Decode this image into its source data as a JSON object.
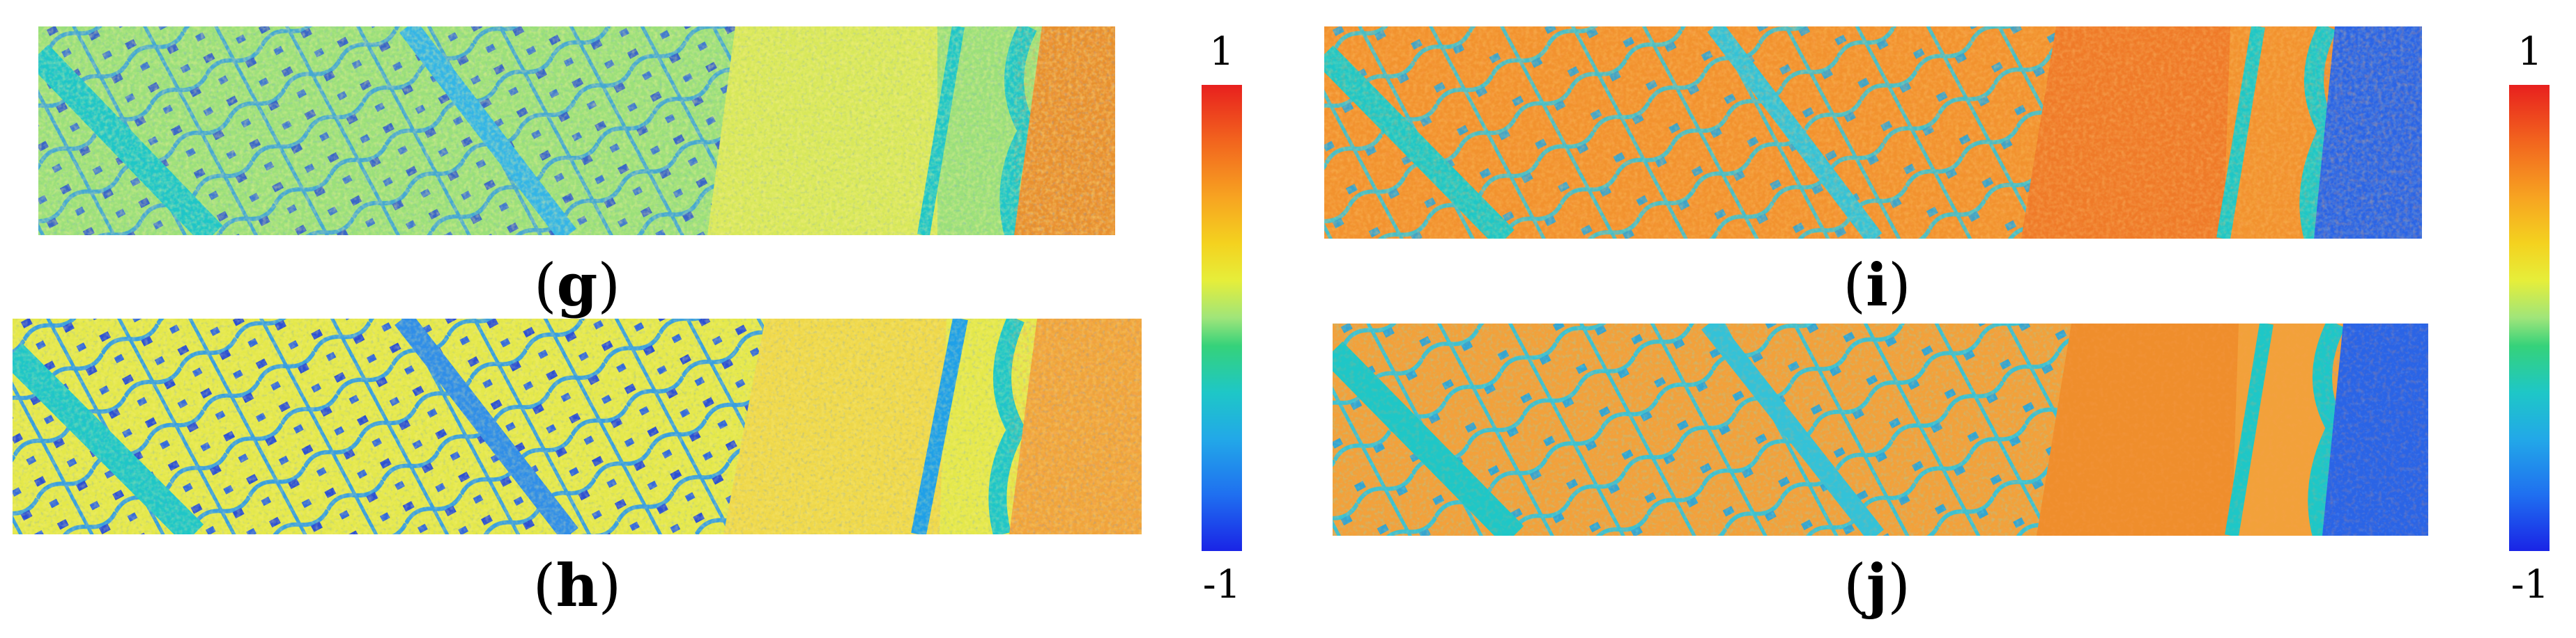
{
  "panels": [
    {
      "id": "g",
      "label": "g",
      "palette": "mixed"
    },
    {
      "id": "h",
      "label": "h",
      "palette": "yellow-blue"
    },
    {
      "id": "i",
      "label": "i",
      "palette": "orange"
    },
    {
      "id": "j",
      "label": "j",
      "palette": "orange-cyan"
    }
  ],
  "colorbar_left": {
    "max_label": "1",
    "min_label": "-1"
  },
  "colorbar_right": {
    "max_label": "1",
    "min_label": "-1"
  },
  "colors": {
    "red": "#e8201e",
    "orange": "#f2641e",
    "yellow": "#f4d21f",
    "green": "#35d27a",
    "cyan": "#1ec7c7",
    "blue": "#1a24e6"
  }
}
